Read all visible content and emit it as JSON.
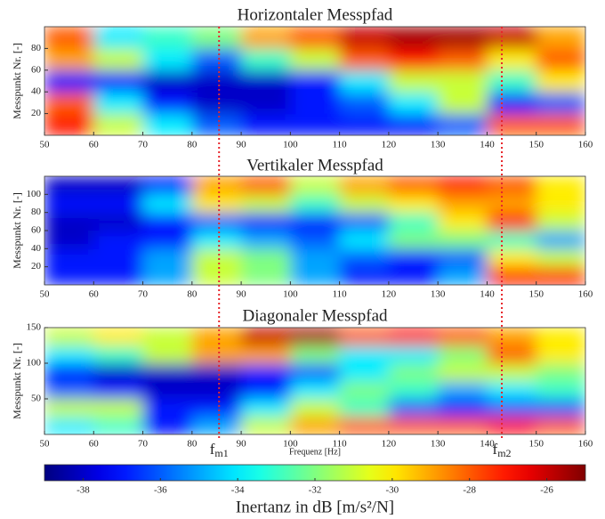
{
  "chart_data": [
    {
      "type": "heatmap",
      "title": "Horizontaler Messpfad",
      "y_label": "Messpunkt Nr. [-]",
      "xbins": [
        50,
        60,
        70,
        80,
        90,
        100,
        110,
        120,
        130,
        140,
        150,
        160
      ],
      "ybins": [
        0,
        20,
        40,
        60,
        80,
        100
      ],
      "xlim": [
        50,
        160
      ],
      "xticks": [
        50,
        60,
        70,
        80,
        90,
        100,
        110,
        120,
        130,
        140,
        150,
        160
      ],
      "ylim": [
        0,
        100
      ],
      "yticks": [
        20,
        40,
        60,
        80
      ],
      "z": [
        [
          -27,
          -31,
          -34,
          -36,
          -37,
          -37,
          -37,
          -37,
          -36,
          -28,
          -28
        ],
        [
          -28,
          -34,
          -37,
          -38,
          -38,
          -37,
          -36,
          -34,
          -31,
          -37,
          -36
        ],
        [
          -37,
          -37,
          -38,
          -38,
          -38,
          -37,
          -34,
          -31,
          -31,
          -33,
          -30
        ],
        [
          -29,
          -31,
          -34,
          -36,
          -33,
          -31,
          -28,
          -27,
          -28,
          -30,
          -28
        ],
        [
          -28,
          -34,
          -33,
          -32,
          -29,
          -28,
          -26,
          -25.5,
          -25.5,
          -26,
          -29
        ]
      ]
    },
    {
      "type": "heatmap",
      "title": "Vertikaler Messpfad",
      "y_label": "Messpunkt Nr. [-]",
      "xbins": [
        50,
        60,
        70,
        80,
        90,
        100,
        110,
        120,
        130,
        140,
        150,
        160
      ],
      "ybins": [
        0,
        20,
        40,
        60,
        80,
        100,
        120
      ],
      "xlim": [
        50,
        160
      ],
      "xticks": [
        50,
        60,
        70,
        80,
        90,
        100,
        110,
        120,
        130,
        140,
        150,
        160
      ],
      "ylim": [
        0,
        120
      ],
      "yticks": [
        20,
        40,
        60,
        80,
        100
      ],
      "z": [
        [
          -37,
          -37,
          -35,
          -31,
          -32,
          -35,
          -37,
          -37,
          -35,
          -27,
          -27
        ],
        [
          -37,
          -37,
          -35,
          -31,
          -32,
          -35,
          -36,
          -37,
          -36,
          -30,
          -31
        ],
        [
          -38,
          -37,
          -37,
          -34,
          -35,
          -36,
          -34,
          -32,
          -32,
          -33,
          -35
        ],
        [
          -38,
          -38,
          -37,
          -36,
          -37,
          -37,
          -36,
          -33,
          -30,
          -27,
          -31
        ],
        [
          -37,
          -37,
          -34,
          -30,
          -31,
          -33,
          -31,
          -30,
          -29,
          -29,
          -30
        ],
        [
          -38,
          -38,
          -37,
          -29,
          -28,
          -31,
          -29,
          -28,
          -27,
          -28,
          -30
        ]
      ]
    },
    {
      "type": "heatmap",
      "title": "Diagonaler Messpfad",
      "y_label": "Messpunkt Nr. [-]",
      "x_label": "Frequenz [Hz]",
      "xbins": [
        50,
        60,
        70,
        80,
        90,
        100,
        110,
        120,
        130,
        140,
        150,
        160
      ],
      "ybins": [
        0,
        25,
        50,
        75,
        100,
        125,
        150
      ],
      "xlim": [
        50,
        160
      ],
      "xticks": [
        50,
        60,
        70,
        80,
        90,
        100,
        110,
        120,
        130,
        140,
        150,
        160
      ],
      "ylim": [
        0,
        150
      ],
      "yticks": [
        50,
        100,
        150
      ],
      "z": [
        [
          -34,
          -33,
          -37,
          -35,
          -31,
          -29,
          -28,
          -28,
          -28,
          -27,
          -28
        ],
        [
          -31,
          -31,
          -37,
          -37,
          -34,
          -31,
          -33,
          -36,
          -37,
          -36,
          -36
        ],
        [
          -36,
          -37,
          -38,
          -38,
          -37,
          -34,
          -32,
          -33,
          -35,
          -34,
          -33
        ],
        [
          -37,
          -38,
          -38,
          -38,
          -37,
          -36,
          -34,
          -32,
          -31,
          -31,
          -32
        ],
        [
          -34,
          -33,
          -31,
          -29,
          -29,
          -32,
          -34,
          -34,
          -32,
          -28,
          -30
        ],
        [
          -31,
          -30,
          -31,
          -29,
          -26,
          -25.5,
          -28,
          -27,
          -28,
          -29,
          -30
        ]
      ]
    },
    {
      "type": "colorbar",
      "label": "Inertanz in dB [m/s²/N]",
      "colormap": "jet",
      "clim": [
        -39,
        -25
      ],
      "cticks": [
        -38,
        -36,
        -34,
        -32,
        -30,
        -28,
        -26
      ],
      "annotations": [
        {
          "text": "f",
          "sub": "m1",
          "x": 85.5,
          "color": "#e8262a"
        },
        {
          "text": "f",
          "sub": "m2",
          "x": 143,
          "color": "#e8262a"
        }
      ]
    }
  ]
}
